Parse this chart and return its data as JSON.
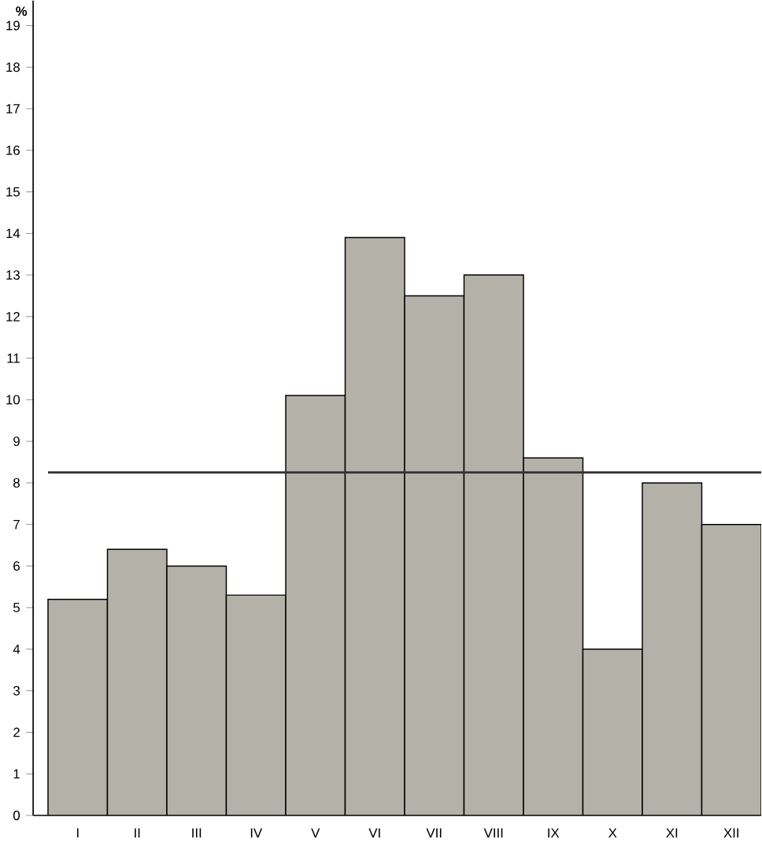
{
  "chart_data": {
    "type": "bar",
    "ylabel": "%",
    "categories": [
      "I",
      "II",
      "III",
      "IV",
      "V",
      "VI",
      "VII",
      "VIII",
      "IX",
      "X",
      "XI",
      "XII"
    ],
    "values": [
      5.2,
      6.4,
      6.0,
      5.3,
      10.1,
      13.9,
      12.5,
      13.0,
      8.6,
      4.0,
      8.0,
      7.0
    ],
    "color": "#b4b2a8",
    "ylim": [
      0,
      19.6
    ],
    "yticks": [
      0,
      1,
      2,
      3,
      4,
      5,
      6,
      7,
      8,
      9,
      10,
      11,
      12,
      13,
      14,
      15,
      16,
      17,
      18,
      19
    ],
    "ref_lines": [
      {
        "axis": "y",
        "value": 8.25,
        "color": "#333333"
      }
    ]
  }
}
